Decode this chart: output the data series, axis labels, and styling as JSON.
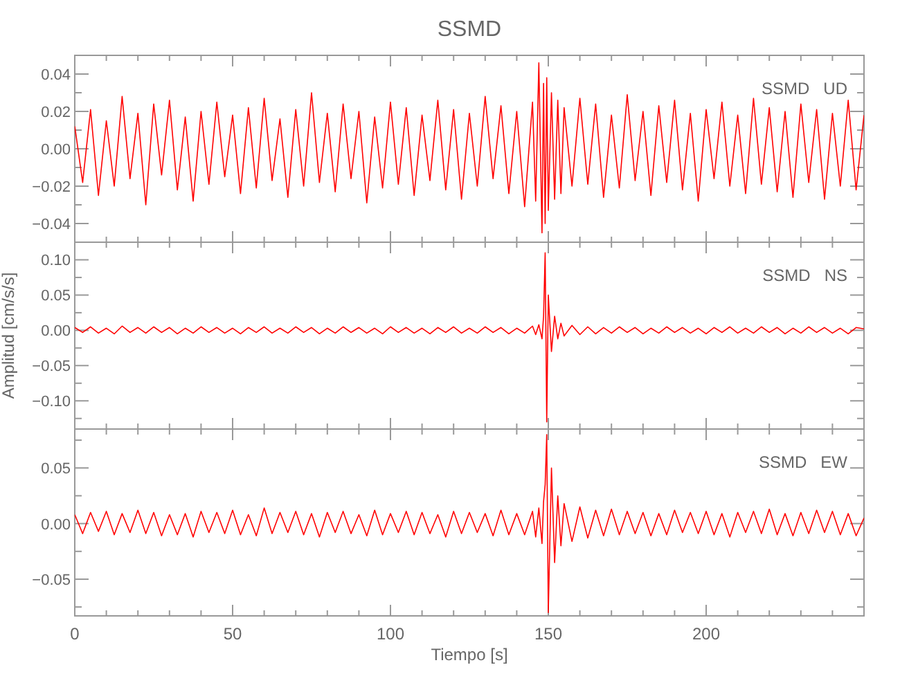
{
  "chart_data": [
    {
      "type": "line",
      "title": "SSMD",
      "annotations": [
        "SSMD   UD"
      ],
      "tick_labels": "y",
      "xlim": [
        0,
        250
      ],
      "xticks": [
        0,
        {
          "value": 10,
          "label": null
        },
        {
          "value": 20,
          "label": null
        },
        {
          "value": 30,
          "label": null
        },
        {
          "value": 40,
          "label": null
        },
        50,
        {
          "value": 60,
          "label": null
        },
        {
          "value": 70,
          "label": null
        },
        {
          "value": 80,
          "label": null
        },
        {
          "value": 90,
          "label": null
        },
        100,
        {
          "value": 110,
          "label": null
        },
        {
          "value": 120,
          "label": null
        },
        {
          "value": 130,
          "label": null
        },
        {
          "value": 140,
          "label": null
        },
        150,
        {
          "value": 160,
          "label": null
        },
        {
          "value": 170,
          "label": null
        },
        {
          "value": 180,
          "label": null
        },
        {
          "value": 190,
          "label": null
        },
        200,
        {
          "value": 210,
          "label": null
        },
        {
          "value": 220,
          "label": null
        },
        {
          "value": 230,
          "label": null
        },
        {
          "value": 240,
          "label": null
        }
      ],
      "ylim": [
        -0.05,
        0.05
      ],
      "yticks": [
        {
          "value": -0.04,
          "label": "−0.04"
        },
        {
          "value": -0.03,
          "label": null
        },
        {
          "value": -0.02,
          "label": "−0.02"
        },
        {
          "value": -0.01,
          "label": null
        },
        {
          "value": 0,
          "label": "0.00"
        },
        {
          "value": 0.01,
          "label": null
        },
        {
          "value": 0.02,
          "label": "0.02"
        },
        {
          "value": 0.03,
          "label": null
        },
        {
          "value": 0.04,
          "label": "0.04"
        }
      ],
      "x": [
        0,
        2.5,
        5,
        7.5,
        10,
        12.5,
        15,
        17.5,
        20,
        22.5,
        25,
        27.5,
        30,
        32.5,
        35,
        37.5,
        40,
        42.5,
        45,
        47.5,
        50,
        52.5,
        55,
        57.5,
        60,
        62.5,
        65,
        67.5,
        70,
        72.5,
        75,
        77.5,
        80,
        82.5,
        85,
        87.5,
        90,
        92.5,
        95,
        97.5,
        100,
        102.5,
        105,
        107.5,
        110,
        112.5,
        115,
        117.5,
        120,
        122.5,
        125,
        127.5,
        130,
        132.5,
        135,
        137.5,
        140,
        142.5,
        145,
        146,
        147,
        148,
        148.5,
        149,
        149.5,
        150,
        151,
        152,
        153,
        154,
        155,
        157.5,
        160,
        162.5,
        165,
        167.5,
        170,
        172.5,
        175,
        177.5,
        180,
        182.5,
        185,
        187.5,
        190,
        192.5,
        195,
        197.5,
        200,
        202.5,
        205,
        207.5,
        210,
        212.5,
        215,
        217.5,
        220,
        222.5,
        225,
        227.5,
        230,
        232.5,
        235,
        237.5,
        240,
        242.5,
        245,
        247.5,
        250
      ],
      "series": [
        {
          "color": "#ff0000",
          "values": [
            0.012,
            -0.018,
            0.021,
            -0.025,
            0.015,
            -0.02,
            0.028,
            -0.016,
            0.019,
            -0.03,
            0.024,
            -0.014,
            0.026,
            -0.022,
            0.017,
            -0.028,
            0.02,
            -0.019,
            0.025,
            -0.015,
            0.018,
            -0.024,
            0.022,
            -0.021,
            0.027,
            -0.017,
            0.016,
            -0.026,
            0.021,
            -0.02,
            0.03,
            -0.018,
            0.019,
            -0.023,
            0.024,
            -0.016,
            0.02,
            -0.029,
            0.017,
            -0.021,
            0.025,
            -0.019,
            0.022,
            -0.025,
            0.018,
            -0.017,
            0.026,
            -0.022,
            0.021,
            -0.027,
            0.019,
            -0.02,
            0.028,
            -0.016,
            0.023,
            -0.024,
            0.02,
            -0.031,
            0.025,
            -0.028,
            0.046,
            -0.045,
            0.035,
            -0.04,
            0.038,
            -0.033,
            0.03,
            -0.027,
            0.026,
            -0.024,
            0.022,
            -0.02,
            0.027,
            -0.019,
            0.024,
            -0.026,
            0.018,
            -0.021,
            0.029,
            -0.017,
            0.02,
            -0.025,
            0.023,
            -0.018,
            0.026,
            -0.022,
            0.019,
            -0.028,
            0.021,
            -0.016,
            0.025,
            -0.02,
            0.018,
            -0.024,
            0.027,
            -0.019,
            0.022,
            -0.023,
            0.02,
            -0.026,
            0.024,
            -0.018,
            0.021,
            -0.027,
            0.019,
            -0.02,
            0.026,
            -0.022,
            0.018
          ]
        }
      ]
    },
    {
      "type": "line",
      "ylabel": "Amplitud [cm/s/s]",
      "annotations": [
        "SSMD   NS"
      ],
      "tick_labels": "y",
      "xlim": [
        0,
        250
      ],
      "xticks": [
        0,
        {
          "value": 10,
          "label": null
        },
        {
          "value": 20,
          "label": null
        },
        {
          "value": 30,
          "label": null
        },
        {
          "value": 40,
          "label": null
        },
        50,
        {
          "value": 60,
          "label": null
        },
        {
          "value": 70,
          "label": null
        },
        {
          "value": 80,
          "label": null
        },
        {
          "value": 90,
          "label": null
        },
        100,
        {
          "value": 110,
          "label": null
        },
        {
          "value": 120,
          "label": null
        },
        {
          "value": 130,
          "label": null
        },
        {
          "value": 140,
          "label": null
        },
        150,
        {
          "value": 160,
          "label": null
        },
        {
          "value": 170,
          "label": null
        },
        {
          "value": 180,
          "label": null
        },
        {
          "value": 190,
          "label": null
        },
        200,
        {
          "value": 210,
          "label": null
        },
        {
          "value": 220,
          "label": null
        },
        {
          "value": 230,
          "label": null
        },
        {
          "value": 240,
          "label": null
        }
      ],
      "ylim": [
        -0.14,
        0.125
      ],
      "yticks": [
        {
          "value": -0.125,
          "label": null
        },
        {
          "value": -0.1,
          "label": "−0.10"
        },
        {
          "value": -0.075,
          "label": null
        },
        {
          "value": -0.05,
          "label": "−0.05"
        },
        {
          "value": -0.025,
          "label": null
        },
        {
          "value": 0,
          "label": "0.00"
        },
        {
          "value": 0.025,
          "label": null
        },
        {
          "value": 0.05,
          "label": "0.05"
        },
        {
          "value": 0.075,
          "label": null
        },
        {
          "value": 0.1,
          "label": "0.10"
        }
      ],
      "x": [
        0,
        2.5,
        5,
        7.5,
        10,
        12.5,
        15,
        17.5,
        20,
        22.5,
        25,
        27.5,
        30,
        32.5,
        35,
        37.5,
        40,
        42.5,
        45,
        47.5,
        50,
        52.5,
        55,
        57.5,
        60,
        62.5,
        65,
        67.5,
        70,
        72.5,
        75,
        77.5,
        80,
        82.5,
        85,
        87.5,
        90,
        92.5,
        95,
        97.5,
        100,
        102.5,
        105,
        107.5,
        110,
        112.5,
        115,
        117.5,
        120,
        122.5,
        125,
        127.5,
        130,
        132.5,
        135,
        137.5,
        140,
        142.5,
        145,
        146,
        147,
        148,
        148.5,
        149,
        149.5,
        150,
        151,
        152,
        153,
        154,
        155,
        157.5,
        160,
        162.5,
        165,
        167.5,
        170,
        172.5,
        175,
        177.5,
        180,
        182.5,
        185,
        187.5,
        190,
        192.5,
        195,
        197.5,
        200,
        202.5,
        205,
        207.5,
        210,
        212.5,
        215,
        217.5,
        220,
        222.5,
        225,
        227.5,
        230,
        232.5,
        235,
        237.5,
        240,
        242.5,
        245,
        247.5,
        250
      ],
      "series": [
        {
          "color": "#ff0000",
          "values": [
            0.004,
            -0.003,
            0.005,
            -0.004,
            0.003,
            -0.005,
            0.006,
            -0.003,
            0.004,
            -0.004,
            0.005,
            -0.003,
            0.004,
            -0.005,
            0.003,
            -0.004,
            0.005,
            -0.003,
            0.004,
            -0.004,
            0.003,
            -0.005,
            0.004,
            -0.003,
            0.005,
            -0.004,
            0.003,
            -0.004,
            0.005,
            -0.003,
            0.004,
            -0.005,
            0.003,
            -0.004,
            0.005,
            -0.003,
            0.004,
            -0.004,
            0.003,
            -0.005,
            0.005,
            -0.003,
            0.004,
            -0.004,
            0.003,
            -0.005,
            0.004,
            -0.003,
            0.005,
            -0.004,
            0.003,
            -0.004,
            0.005,
            -0.003,
            0.004,
            -0.005,
            0.003,
            -0.004,
            0.006,
            -0.006,
            0.008,
            -0.012,
            0.02,
            0.11,
            -0.13,
            0.05,
            -0.03,
            0.02,
            -0.012,
            0.01,
            -0.008,
            0.007,
            -0.006,
            0.005,
            -0.005,
            0.004,
            -0.004,
            0.005,
            -0.003,
            0.004,
            -0.005,
            0.003,
            -0.004,
            0.005,
            -0.003,
            0.004,
            -0.004,
            0.003,
            -0.005,
            0.004,
            -0.003,
            0.005,
            -0.004,
            0.003,
            -0.004,
            0.005,
            -0.003,
            0.004,
            -0.005,
            0.003,
            -0.004,
            0.005,
            -0.003,
            0.004,
            -0.004,
            0.003,
            -0.005,
            0.004,
            0.002
          ]
        }
      ]
    },
    {
      "type": "line",
      "xlabel": "Tiempo [s]",
      "annotations": [
        "SSMD   EW"
      ],
      "xlim": [
        0,
        250
      ],
      "xticks": [
        0,
        {
          "value": 10,
          "label": null
        },
        {
          "value": 20,
          "label": null
        },
        {
          "value": 30,
          "label": null
        },
        {
          "value": 40,
          "label": null
        },
        50,
        {
          "value": 60,
          "label": null
        },
        {
          "value": 70,
          "label": null
        },
        {
          "value": 80,
          "label": null
        },
        {
          "value": 90,
          "label": null
        },
        100,
        {
          "value": 110,
          "label": null
        },
        {
          "value": 120,
          "label": null
        },
        {
          "value": 130,
          "label": null
        },
        {
          "value": 140,
          "label": null
        },
        150,
        {
          "value": 160,
          "label": null
        },
        {
          "value": 170,
          "label": null
        },
        {
          "value": 180,
          "label": null
        },
        {
          "value": 190,
          "label": null
        },
        200,
        {
          "value": 210,
          "label": null
        },
        {
          "value": 220,
          "label": null
        },
        {
          "value": 230,
          "label": null
        },
        {
          "value": 240,
          "label": null
        }
      ],
      "ylim": [
        -0.083,
        0.085
      ],
      "yticks": [
        {
          "value": -0.075,
          "label": null
        },
        {
          "value": -0.05,
          "label": "−0.05"
        },
        {
          "value": -0.025,
          "label": null
        },
        {
          "value": 0,
          "label": "0.00"
        },
        {
          "value": 0.025,
          "label": null
        },
        {
          "value": 0.05,
          "label": "0.05"
        },
        {
          "value": 0.075,
          "label": null
        }
      ],
      "x": [
        0,
        2.5,
        5,
        7.5,
        10,
        12.5,
        15,
        17.5,
        20,
        22.5,
        25,
        27.5,
        30,
        32.5,
        35,
        37.5,
        40,
        42.5,
        45,
        47.5,
        50,
        52.5,
        55,
        57.5,
        60,
        62.5,
        65,
        67.5,
        70,
        72.5,
        75,
        77.5,
        80,
        82.5,
        85,
        87.5,
        90,
        92.5,
        95,
        97.5,
        100,
        102.5,
        105,
        107.5,
        110,
        112.5,
        115,
        117.5,
        120,
        122.5,
        125,
        127.5,
        130,
        132.5,
        135,
        137.5,
        140,
        142.5,
        145,
        146,
        147,
        148,
        148.5,
        149,
        149.5,
        150,
        151,
        152,
        153,
        154,
        155,
        157.5,
        160,
        162.5,
        165,
        167.5,
        170,
        172.5,
        175,
        177.5,
        180,
        182.5,
        185,
        187.5,
        190,
        192.5,
        195,
        197.5,
        200,
        202.5,
        205,
        207.5,
        210,
        212.5,
        215,
        217.5,
        220,
        222.5,
        225,
        227.5,
        230,
        232.5,
        235,
        237.5,
        240,
        242.5,
        245,
        247.5,
        250
      ],
      "series": [
        {
          "color": "#ff0000",
          "values": [
            0.008,
            -0.009,
            0.01,
            -0.007,
            0.011,
            -0.01,
            0.009,
            -0.008,
            0.012,
            -0.009,
            0.01,
            -0.011,
            0.008,
            -0.01,
            0.009,
            -0.012,
            0.011,
            -0.008,
            0.01,
            -0.009,
            0.012,
            -0.01,
            0.008,
            -0.011,
            0.014,
            -0.009,
            0.01,
            -0.008,
            0.011,
            -0.01,
            0.009,
            -0.012,
            0.01,
            -0.008,
            0.011,
            -0.009,
            0.008,
            -0.011,
            0.012,
            -0.01,
            0.009,
            -0.008,
            0.011,
            -0.01,
            0.01,
            -0.009,
            0.008,
            -0.012,
            0.011,
            -0.009,
            0.01,
            -0.008,
            0.009,
            -0.011,
            0.012,
            -0.01,
            0.009,
            -0.01,
            0.011,
            -0.012,
            0.014,
            -0.018,
            0.02,
            0.035,
            0.08,
            -0.08,
            0.05,
            -0.035,
            0.025,
            -0.02,
            0.018,
            -0.016,
            0.015,
            -0.013,
            0.012,
            -0.011,
            0.013,
            -0.01,
            0.011,
            -0.009,
            0.01,
            -0.011,
            0.009,
            -0.01,
            0.012,
            -0.008,
            0.01,
            -0.009,
            0.011,
            -0.01,
            0.009,
            -0.012,
            0.01,
            -0.008,
            0.011,
            -0.009,
            0.013,
            -0.01,
            0.009,
            -0.011,
            0.01,
            -0.009,
            0.012,
            -0.008,
            0.011,
            -0.01,
            0.009,
            -0.011,
            0.005
          ]
        }
      ]
    }
  ]
}
